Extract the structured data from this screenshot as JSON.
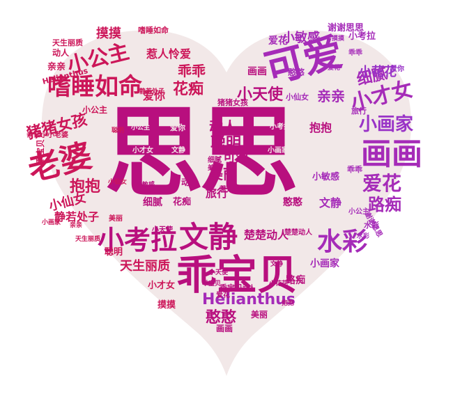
{
  "palette": {
    "heart_fill": "#f2e8e8",
    "crimson": "#cc1659",
    "magenta": "#b80f7e",
    "violet": "#a52bb8",
    "purple": "#9933c7"
  },
  "words": [
    "思思",
    "乖宝贝",
    "老婆",
    "可爱",
    "嗜睡如命",
    "小公主",
    "猪猪女孩",
    "画画",
    "小画家",
    "小才女",
    "小考拉",
    "文静",
    "水彩",
    "Helianthus",
    "憨憨",
    "抱抱",
    "小仙女",
    "爱花",
    "路痴",
    "聪明",
    "美丽",
    "动人",
    "细腻",
    "小天使",
    "花痴",
    "亲亲",
    "小花花",
    "爱你",
    "摸摸",
    "乖乖",
    "惹人怜爱",
    "天生丽质",
    "旅行",
    "静若处子",
    "楚楚动人",
    "小敏感",
    "谢谢思思",
    "乖宝贝",
    "画画",
    "小公主",
    "爱你",
    "文静",
    "可爱",
    "小才女",
    "小画家",
    "小考拉",
    "小敏感",
    "抱抱",
    "乖乖",
    "爱花",
    "亲亲",
    "憨憨",
    "聪明",
    "美丽",
    "细腻",
    "动人",
    "水彩",
    "楚楚动人",
    "天生丽质",
    "摸摸",
    "美丽",
    "小天使",
    "亲亲小小老婆",
    "猪猪女孩",
    "花痴",
    "小仙女",
    "旅行",
    "画画",
    "嗜睡如命",
    "静若处子",
    "Helianthus",
    "惹人怜爱",
    "天生丽质",
    "乖宝贝",
    "动人",
    "小公主",
    "细腻",
    "小花花",
    "路痴",
    "爱花",
    "可爱",
    "小考拉",
    "爱你",
    "小才女",
    "文静",
    "小敏感",
    "小画家",
    "憨憨",
    "乖乖",
    "谢谢思思",
    "小公主",
    "亲亲",
    "摸摸",
    "小仙女",
    "美丽",
    "文静",
    "动人",
    "聪明",
    "水彩",
    "抱抱",
    "小天使",
    "乖宝贝",
    "爱花",
    "小画家"
  ]
}
